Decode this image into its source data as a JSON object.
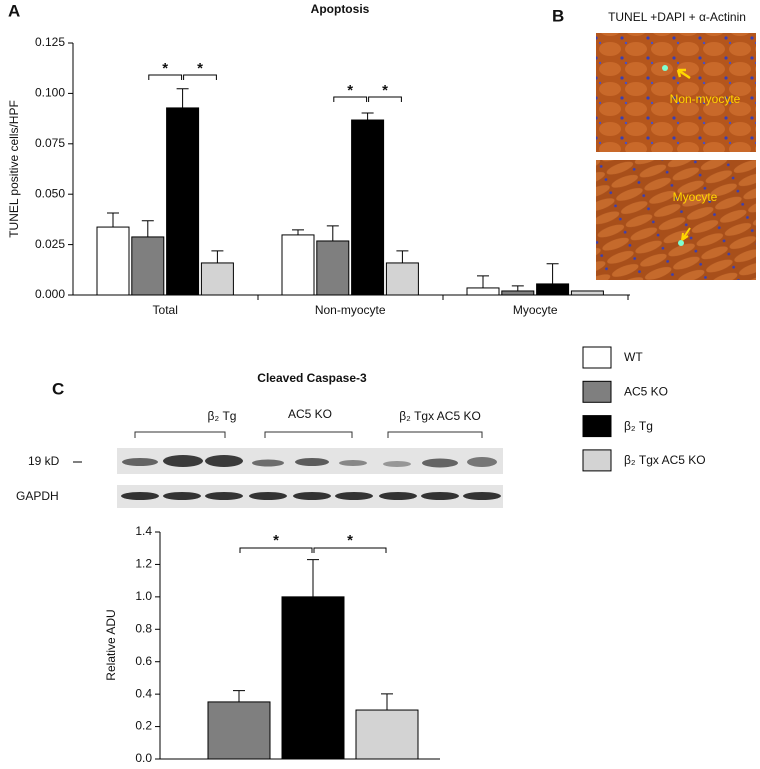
{
  "panels": {
    "a": "A",
    "b": "B",
    "c": "C"
  },
  "micrograph": {
    "title": "TUNEL +DAPI + α-Actinin",
    "labels": [
      "Non-myocyte",
      "Myocyte"
    ]
  },
  "blot": {
    "groups": [
      "β₂ Tg",
      "AC5 KO",
      "β₂ Tgx AC5 KO"
    ],
    "band_label": "19 kD",
    "loading_label": "GAPDH"
  },
  "chart_data": [
    {
      "type": "bar",
      "title": "Apoptosis",
      "y_label": "TUNEL positive cells/HPF",
      "categories": [
        "Total",
        "Non-myocyte",
        "Myocyte"
      ],
      "series": [
        {
          "name": "WT",
          "color": "#ffffff",
          "values": [
            0.0337,
            0.0298,
            0.0035
          ],
          "errors": [
            0.007,
            0.0025,
            0.006
          ]
        },
        {
          "name": "AC5 KO",
          "color": "#7f7f7f",
          "values": [
            0.0288,
            0.0268,
            0.002
          ],
          "errors": [
            0.008,
            0.0075,
            0.0025
          ]
        },
        {
          "name": "β₂ Tg",
          "color": "#000000",
          "values": [
            0.0928,
            0.0868,
            0.0055
          ],
          "errors": [
            0.0095,
            0.0035,
            0.01
          ]
        },
        {
          "name": "β₂ Tgx AC5 KO",
          "color": "#d3d3d3",
          "values": [
            0.0159,
            0.0159,
            0.002
          ],
          "errors": [
            0.006,
            0.006,
            null
          ]
        }
      ],
      "annotations": [
        "*",
        "*",
        "*",
        "*"
      ],
      "ylim": [
        0,
        0.125
      ],
      "yticks": [
        {
          "value": 0,
          "label": "0.000"
        },
        {
          "value": 0.025,
          "label": "0.025"
        },
        {
          "value": 0.05,
          "label": "0.050"
        },
        {
          "value": 0.075,
          "label": "0.075"
        },
        {
          "value": 0.1,
          "label": "0.100"
        },
        {
          "value": 0.125,
          "label": "0.125"
        }
      ]
    },
    {
      "type": "bar",
      "title": "Cleaved Caspase-3",
      "y_label": "Relative ADU",
      "categories": [
        null,
        null,
        null
      ],
      "colors": [
        "#7f7f7f",
        "#000000",
        "#d3d3d3"
      ],
      "values": [
        0.352,
        1.0,
        0.302
      ],
      "errors": [
        0.07,
        0.23,
        0.1
      ],
      "annotations": [
        "*",
        "*"
      ],
      "ylim": [
        0,
        1.4
      ],
      "yticks": [
        {
          "value": 0,
          "label": "0.0"
        },
        {
          "value": 0.2,
          "label": "0.2"
        },
        {
          "value": 0.4,
          "label": "0.4"
        },
        {
          "value": 0.6,
          "label": "0.6"
        },
        {
          "value": 0.8,
          "label": "0.8"
        },
        {
          "value": 1,
          "label": "1.0"
        },
        {
          "value": 1.2,
          "label": "1.2"
        },
        {
          "value": 1.4,
          "label": "1.4"
        }
      ]
    }
  ]
}
